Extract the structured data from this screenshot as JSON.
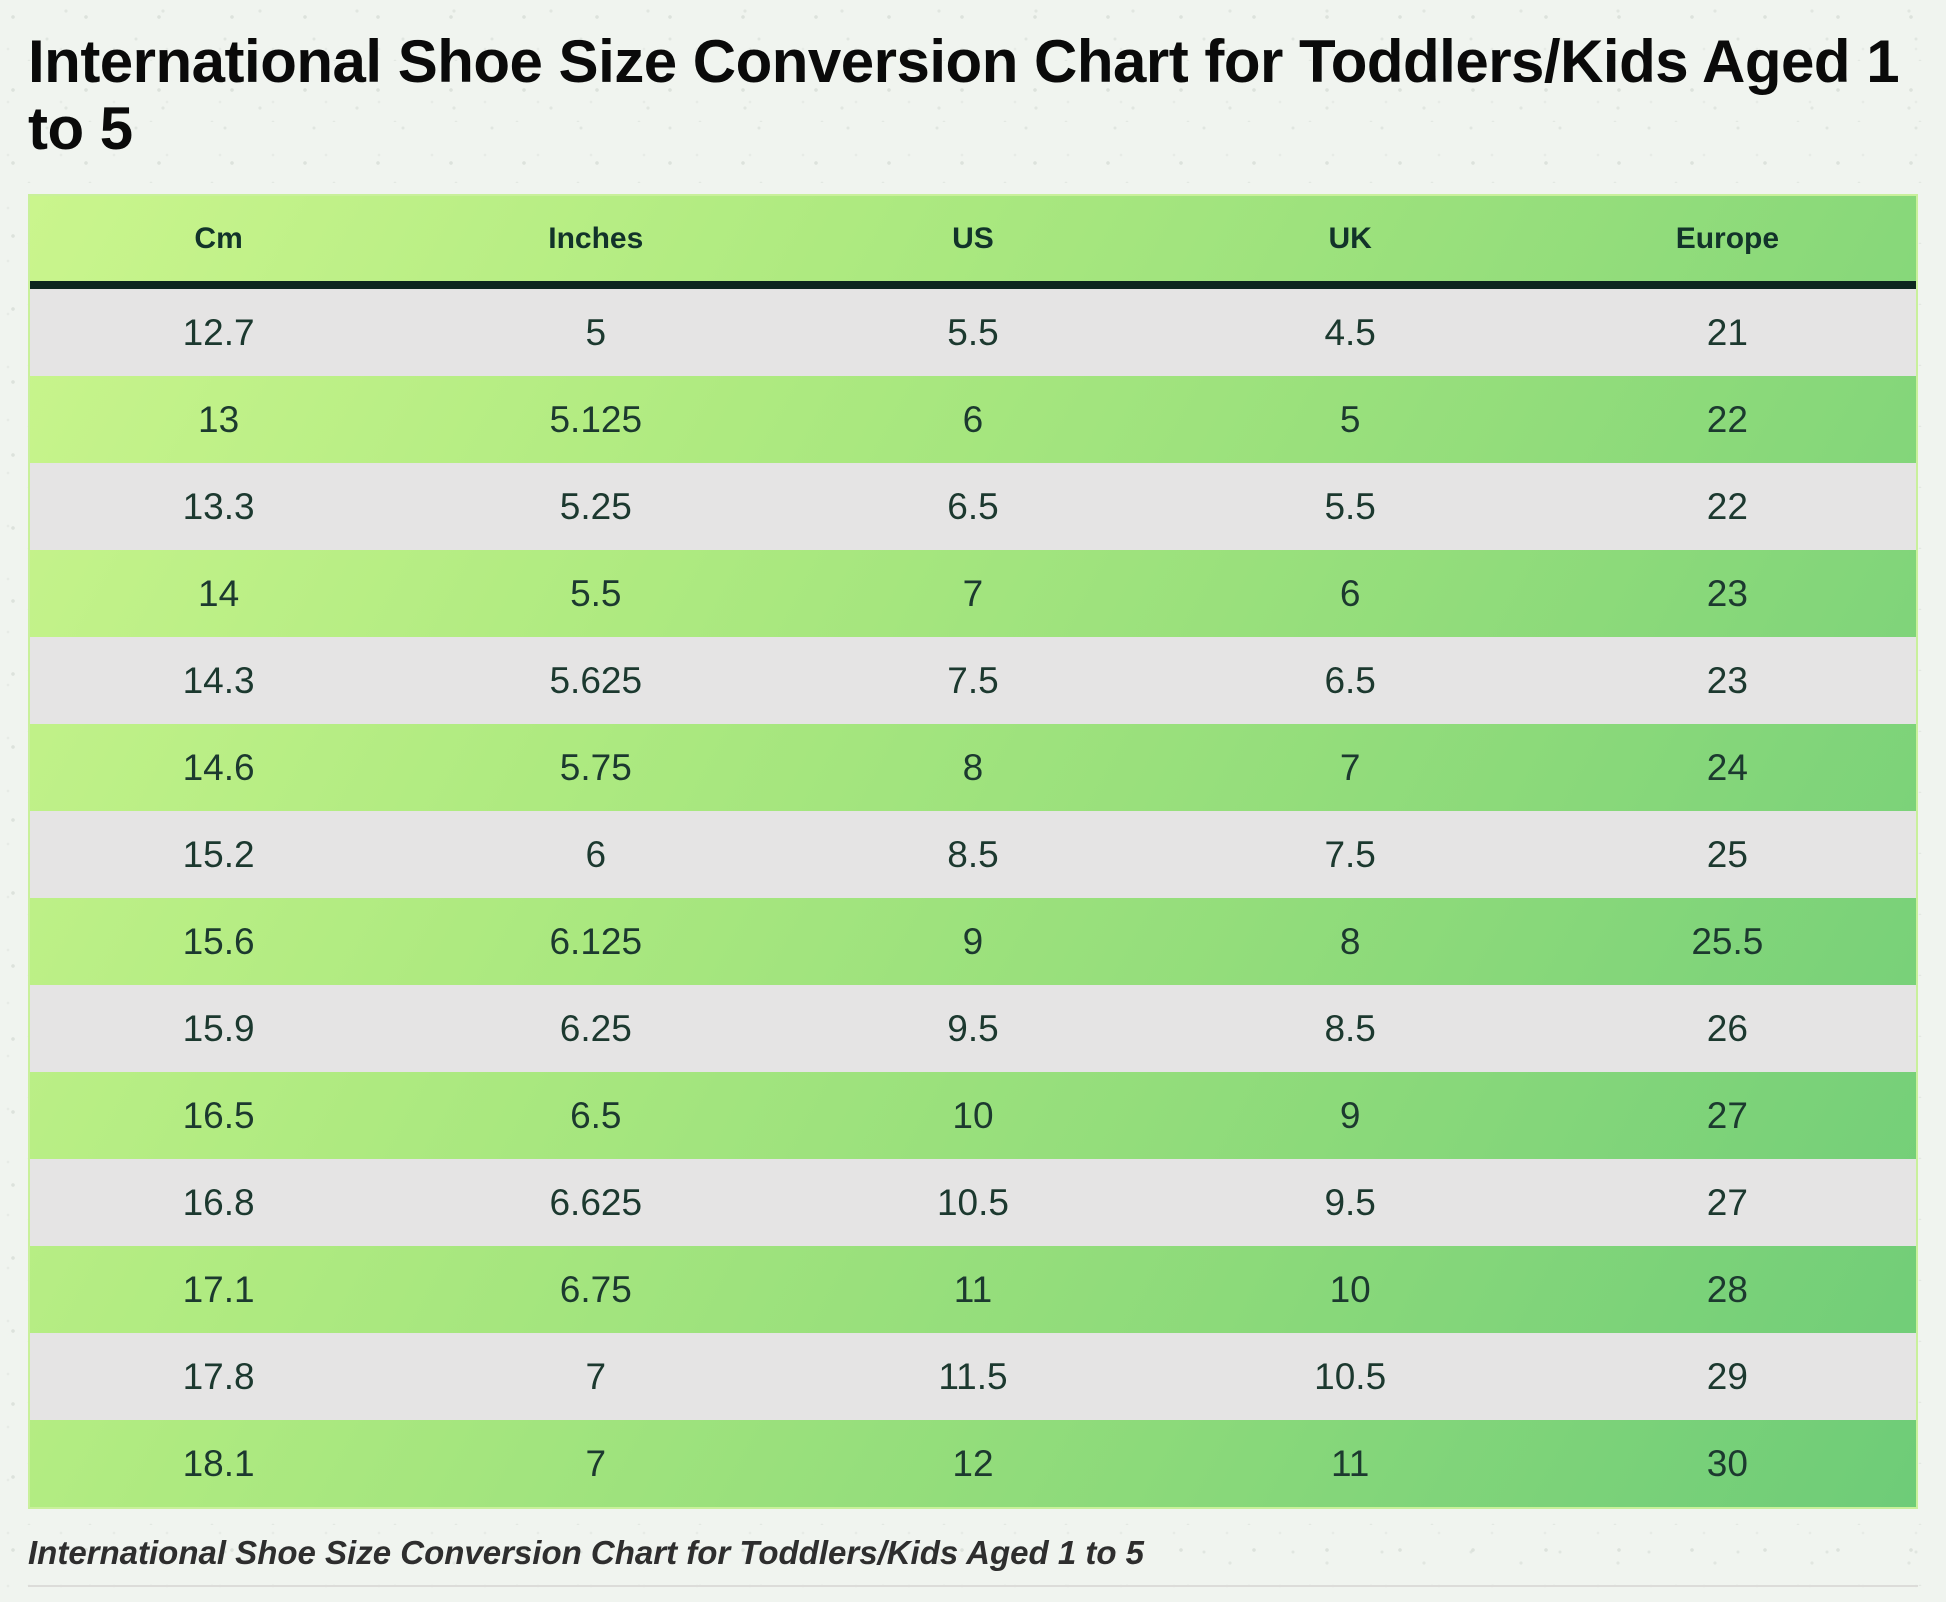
{
  "page": {
    "title": "International Shoe Size Conversion Chart for Toddlers/Kids Aged 1 to 5",
    "caption": "International Shoe Size Conversion Chart for Toddlers/Kids Aged 1 to 5"
  },
  "chart_data": {
    "type": "table",
    "title": "International Shoe Size Conversion Chart for Toddlers/Kids Aged 1 to 5",
    "columns": [
      "Cm",
      "Inches",
      "US",
      "UK",
      "Europe"
    ],
    "rows": [
      [
        "12.7",
        "5",
        "5.5",
        "4.5",
        "21"
      ],
      [
        "13",
        "5.125",
        "6",
        "5",
        "22"
      ],
      [
        "13.3",
        "5.25",
        "6.5",
        "5.5",
        "22"
      ],
      [
        "14",
        "5.5",
        "7",
        "6",
        "23"
      ],
      [
        "14.3",
        "5.625",
        "7.5",
        "6.5",
        "23"
      ],
      [
        "14.6",
        "5.75",
        "8",
        "7",
        "24"
      ],
      [
        "15.2",
        "6",
        "8.5",
        "7.5",
        "25"
      ],
      [
        "15.6",
        "6.125",
        "9",
        "8",
        "25.5"
      ],
      [
        "15.9",
        "6.25",
        "9.5",
        "8.5",
        "26"
      ],
      [
        "16.5",
        "6.5",
        "10",
        "9",
        "27"
      ],
      [
        "16.8",
        "6.625",
        "10.5",
        "9.5",
        "27"
      ],
      [
        "17.1",
        "6.75",
        "11",
        "10",
        "28"
      ],
      [
        "17.8",
        "7",
        "11.5",
        "10.5",
        "29"
      ],
      [
        "18.1",
        "7",
        "12",
        "11",
        "30"
      ]
    ],
    "layout": {
      "row_striping": "odd rows gray, even rows green gradient",
      "header_position": "top"
    }
  },
  "colors": {
    "background": "#f0f4ef",
    "table_gradient_start": "#caf58d",
    "table_gradient_end": "#6ecc78",
    "row_alt_gray": "#e5e4e4",
    "header_underline_dark": "#0d261f",
    "table_border_light": "#c9f09b",
    "cell_text": "#1c392f",
    "title_text": "#0a0a0a",
    "caption_text": "#2e2e2e",
    "divider": "#dcdcd9"
  }
}
